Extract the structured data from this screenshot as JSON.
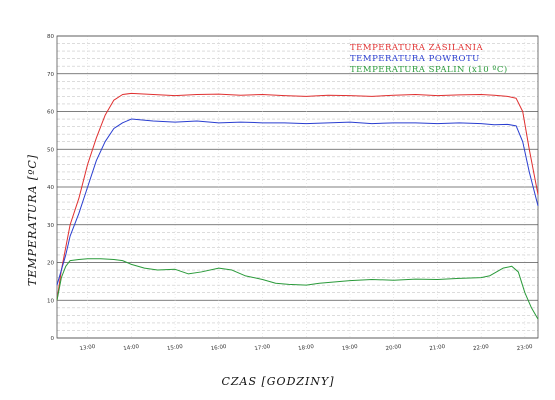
{
  "chart_data": {
    "type": "line",
    "xlabel": "CZAS [GODZINY]",
    "ylabel": "TEMPERATURA [ºC]",
    "ylim": [
      0,
      80
    ],
    "xlim": [
      12.3,
      23.3
    ],
    "yticks": [
      "0",
      "10",
      "20",
      "30",
      "40",
      "50",
      "60",
      "70",
      "80"
    ],
    "xticks": [
      {
        "value": 13,
        "label": "13:00"
      },
      {
        "value": 14,
        "label": "14:00"
      },
      {
        "value": 15,
        "label": "15:00"
      },
      {
        "value": 16,
        "label": "16:00"
      },
      {
        "value": 17,
        "label": "17:00"
      },
      {
        "value": 18,
        "label": "18:00"
      },
      {
        "value": 19,
        "label": "19:00"
      },
      {
        "value": 20,
        "label": "20:00"
      },
      {
        "value": 21,
        "label": "21:00"
      },
      {
        "value": 22,
        "label": "22:00"
      },
      {
        "value": 23,
        "label": "23:00"
      }
    ],
    "grid": "on",
    "legend_position": "top-right",
    "series": [
      {
        "name": "TEMPERATURA ZASILANIA",
        "color": "#e03030",
        "x": [
          12.3,
          12.4,
          12.5,
          12.6,
          12.8,
          13.0,
          13.2,
          13.4,
          13.6,
          13.8,
          14.0,
          14.5,
          15.0,
          15.5,
          16.0,
          16.5,
          17.0,
          17.5,
          18.0,
          18.5,
          19.0,
          19.5,
          20.0,
          20.5,
          21.0,
          21.5,
          22.0,
          22.3,
          22.6,
          22.8,
          22.95,
          23.1,
          23.3
        ],
        "y": [
          10,
          18,
          24,
          30,
          37,
          46,
          53,
          59,
          63,
          64.5,
          64.8,
          64.5,
          64.2,
          64.5,
          64.6,
          64.3,
          64.5,
          64.2,
          64.0,
          64.3,
          64.2,
          64.0,
          64.3,
          64.5,
          64.2,
          64.4,
          64.5,
          64.3,
          64.0,
          63.5,
          60,
          50,
          38
        ]
      },
      {
        "name": "TEMPERATURA POWROTU",
        "color": "#2a3ed0",
        "x": [
          12.3,
          12.4,
          12.5,
          12.6,
          12.8,
          13.0,
          13.2,
          13.4,
          13.6,
          13.8,
          14.0,
          14.5,
          15.0,
          15.5,
          16.0,
          16.5,
          17.0,
          17.5,
          18.0,
          18.5,
          19.0,
          19.5,
          20.0,
          20.5,
          21.0,
          21.5,
          22.0,
          22.3,
          22.6,
          22.8,
          22.95,
          23.1,
          23.3
        ],
        "y": [
          14,
          18,
          22,
          27,
          33,
          40,
          47,
          52,
          55.5,
          57,
          58,
          57.5,
          57.2,
          57.5,
          57.0,
          57.2,
          57.0,
          57.0,
          56.8,
          57.0,
          57.2,
          56.8,
          57.0,
          57.0,
          56.8,
          57.0,
          56.8,
          56.5,
          56.6,
          56.2,
          52,
          44,
          35
        ]
      },
      {
        "name": "TEMPERATURA SPALIN (x10 ºC)",
        "color": "#2a9a3a",
        "x": [
          12.3,
          12.4,
          12.5,
          12.6,
          12.8,
          13.0,
          13.3,
          13.6,
          13.8,
          14.0,
          14.3,
          14.6,
          15.0,
          15.3,
          15.6,
          16.0,
          16.3,
          16.6,
          17.0,
          17.3,
          17.6,
          18.0,
          18.3,
          18.6,
          19.0,
          19.5,
          20.0,
          20.5,
          21.0,
          21.5,
          22.0,
          22.2,
          22.5,
          22.7,
          22.85,
          23.0,
          23.15,
          23.3
        ],
        "y": [
          10,
          16,
          19,
          20.5,
          20.8,
          21.0,
          21.0,
          20.8,
          20.5,
          19.5,
          18.5,
          18.0,
          18.2,
          17.0,
          17.5,
          18.5,
          18.0,
          16.5,
          15.5,
          14.5,
          14.2,
          14.0,
          14.5,
          14.8,
          15.2,
          15.5,
          15.3,
          15.6,
          15.5,
          15.8,
          16.0,
          16.5,
          18.5,
          19.0,
          17.5,
          12.0,
          8.0,
          5.0
        ]
      }
    ]
  }
}
